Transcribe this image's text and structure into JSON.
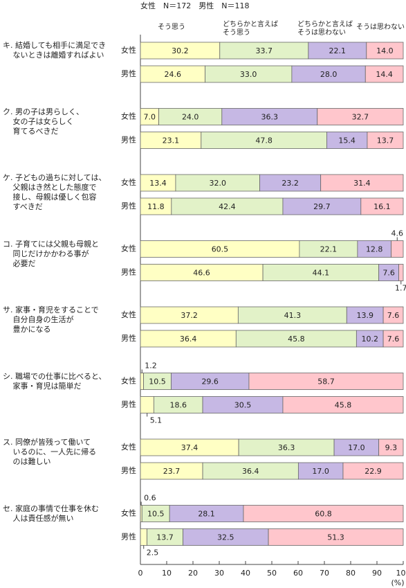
{
  "chart_data": {
    "type": "bar",
    "orientation": "horizontal",
    "stacked": true,
    "header": "女性　N＝172　男性　N＝118",
    "groups": [
      "キ. 結婚しても相手に満足でき\n　 ないときは離婚すればよい",
      "ク. 男の子は男らしく、\n　 女の子は女らしく\n　 育てるべきだ",
      "ケ. 子どもの過ちに対しては、\n　 父親はき然とした態度で\n　 接し、母親は優しく包容\n　 すべきだ",
      "コ. 子育てには父親も母親と\n　 同じだけかかわる事が\n　 必要だ",
      "サ. 家事・育児をすることで\n　 自分自身の生活が\n　 豊かになる",
      "シ. 職場での仕事に比べると、\n　 家事・育児は簡単だ",
      "ス. 同僚が皆残って働いて\n　 いるのに、一人先に帰る\n　 のは難しい",
      "セ. 家庭の事情で仕事を休む\n　 人は責任感が無い"
    ],
    "categories": [
      "女性",
      "男性",
      "女性",
      "男性",
      "女性",
      "男性",
      "女性",
      "男性",
      "女性",
      "男性",
      "女性",
      "男性",
      "女性",
      "男性",
      "女性",
      "男性"
    ],
    "series": [
      {
        "name": "そう思う",
        "color": "#ffffc4",
        "values": [
          30.2,
          24.6,
          7.0,
          23.1,
          13.4,
          11.8,
          60.5,
          46.6,
          37.2,
          36.4,
          1.2,
          5.1,
          37.4,
          23.7,
          0.6,
          2.5
        ],
        "value_labels": [
          "30.2",
          "24.6",
          "7.0",
          "23.1",
          "13.4",
          "11.8",
          "60.5",
          "46.6",
          "37.2",
          "36.4",
          "1.2",
          "5.1",
          "37.4",
          "23.7",
          "0.6",
          "2.5"
        ]
      },
      {
        "name": "どちらかと言えば\nそう思う",
        "color": "#e2f2c8",
        "values": [
          33.7,
          33.0,
          24.0,
          47.8,
          32.0,
          42.4,
          22.1,
          44.1,
          41.3,
          45.8,
          10.5,
          18.6,
          36.3,
          36.4,
          10.5,
          13.7
        ],
        "value_labels": [
          "33.7",
          "33.0",
          "24.0",
          "47.8",
          "32.0",
          "42.4",
          "22.1",
          "44.1",
          "41.3",
          "45.8",
          "10.5",
          "18.6",
          "36.3",
          "36.4",
          "10.5",
          "13.7"
        ]
      },
      {
        "name": "どちらかと言えば\nそうは思わない",
        "color": "#c6b8e4",
        "values": [
          22.1,
          28.0,
          36.3,
          15.4,
          23.2,
          29.7,
          12.8,
          7.6,
          13.9,
          10.2,
          29.6,
          30.5,
          17.0,
          17.0,
          28.1,
          32.5
        ],
        "value_labels": [
          "22.1",
          "28.0",
          "36.3",
          "15.4",
          "23.2",
          "29.7",
          "12.8",
          "7.6",
          "13.9",
          "10.2",
          "29.6",
          "30.5",
          "17.0",
          "17.0",
          "28.1",
          "32.5"
        ]
      },
      {
        "name": "そうは思わない",
        "color": "#ffc6cc",
        "values": [
          14.0,
          14.4,
          32.7,
          13.7,
          31.4,
          16.1,
          4.6,
          1.7,
          7.6,
          7.6,
          58.7,
          45.8,
          9.3,
          22.9,
          60.8,
          51.3
        ],
        "value_labels": [
          "14.0",
          "14.4",
          "32.7",
          "13.7",
          "31.4",
          "16.1",
          "4.6",
          "1.7",
          "7.6",
          "7.6",
          "58.7",
          "45.8",
          "9.3",
          "22.9",
          "60.8",
          "51.3"
        ]
      }
    ],
    "xlim": [
      0,
      100
    ],
    "xticks": [
      0,
      10,
      20,
      30,
      40,
      50,
      60,
      70,
      80,
      90,
      100
    ],
    "xlabel": "(%)"
  }
}
